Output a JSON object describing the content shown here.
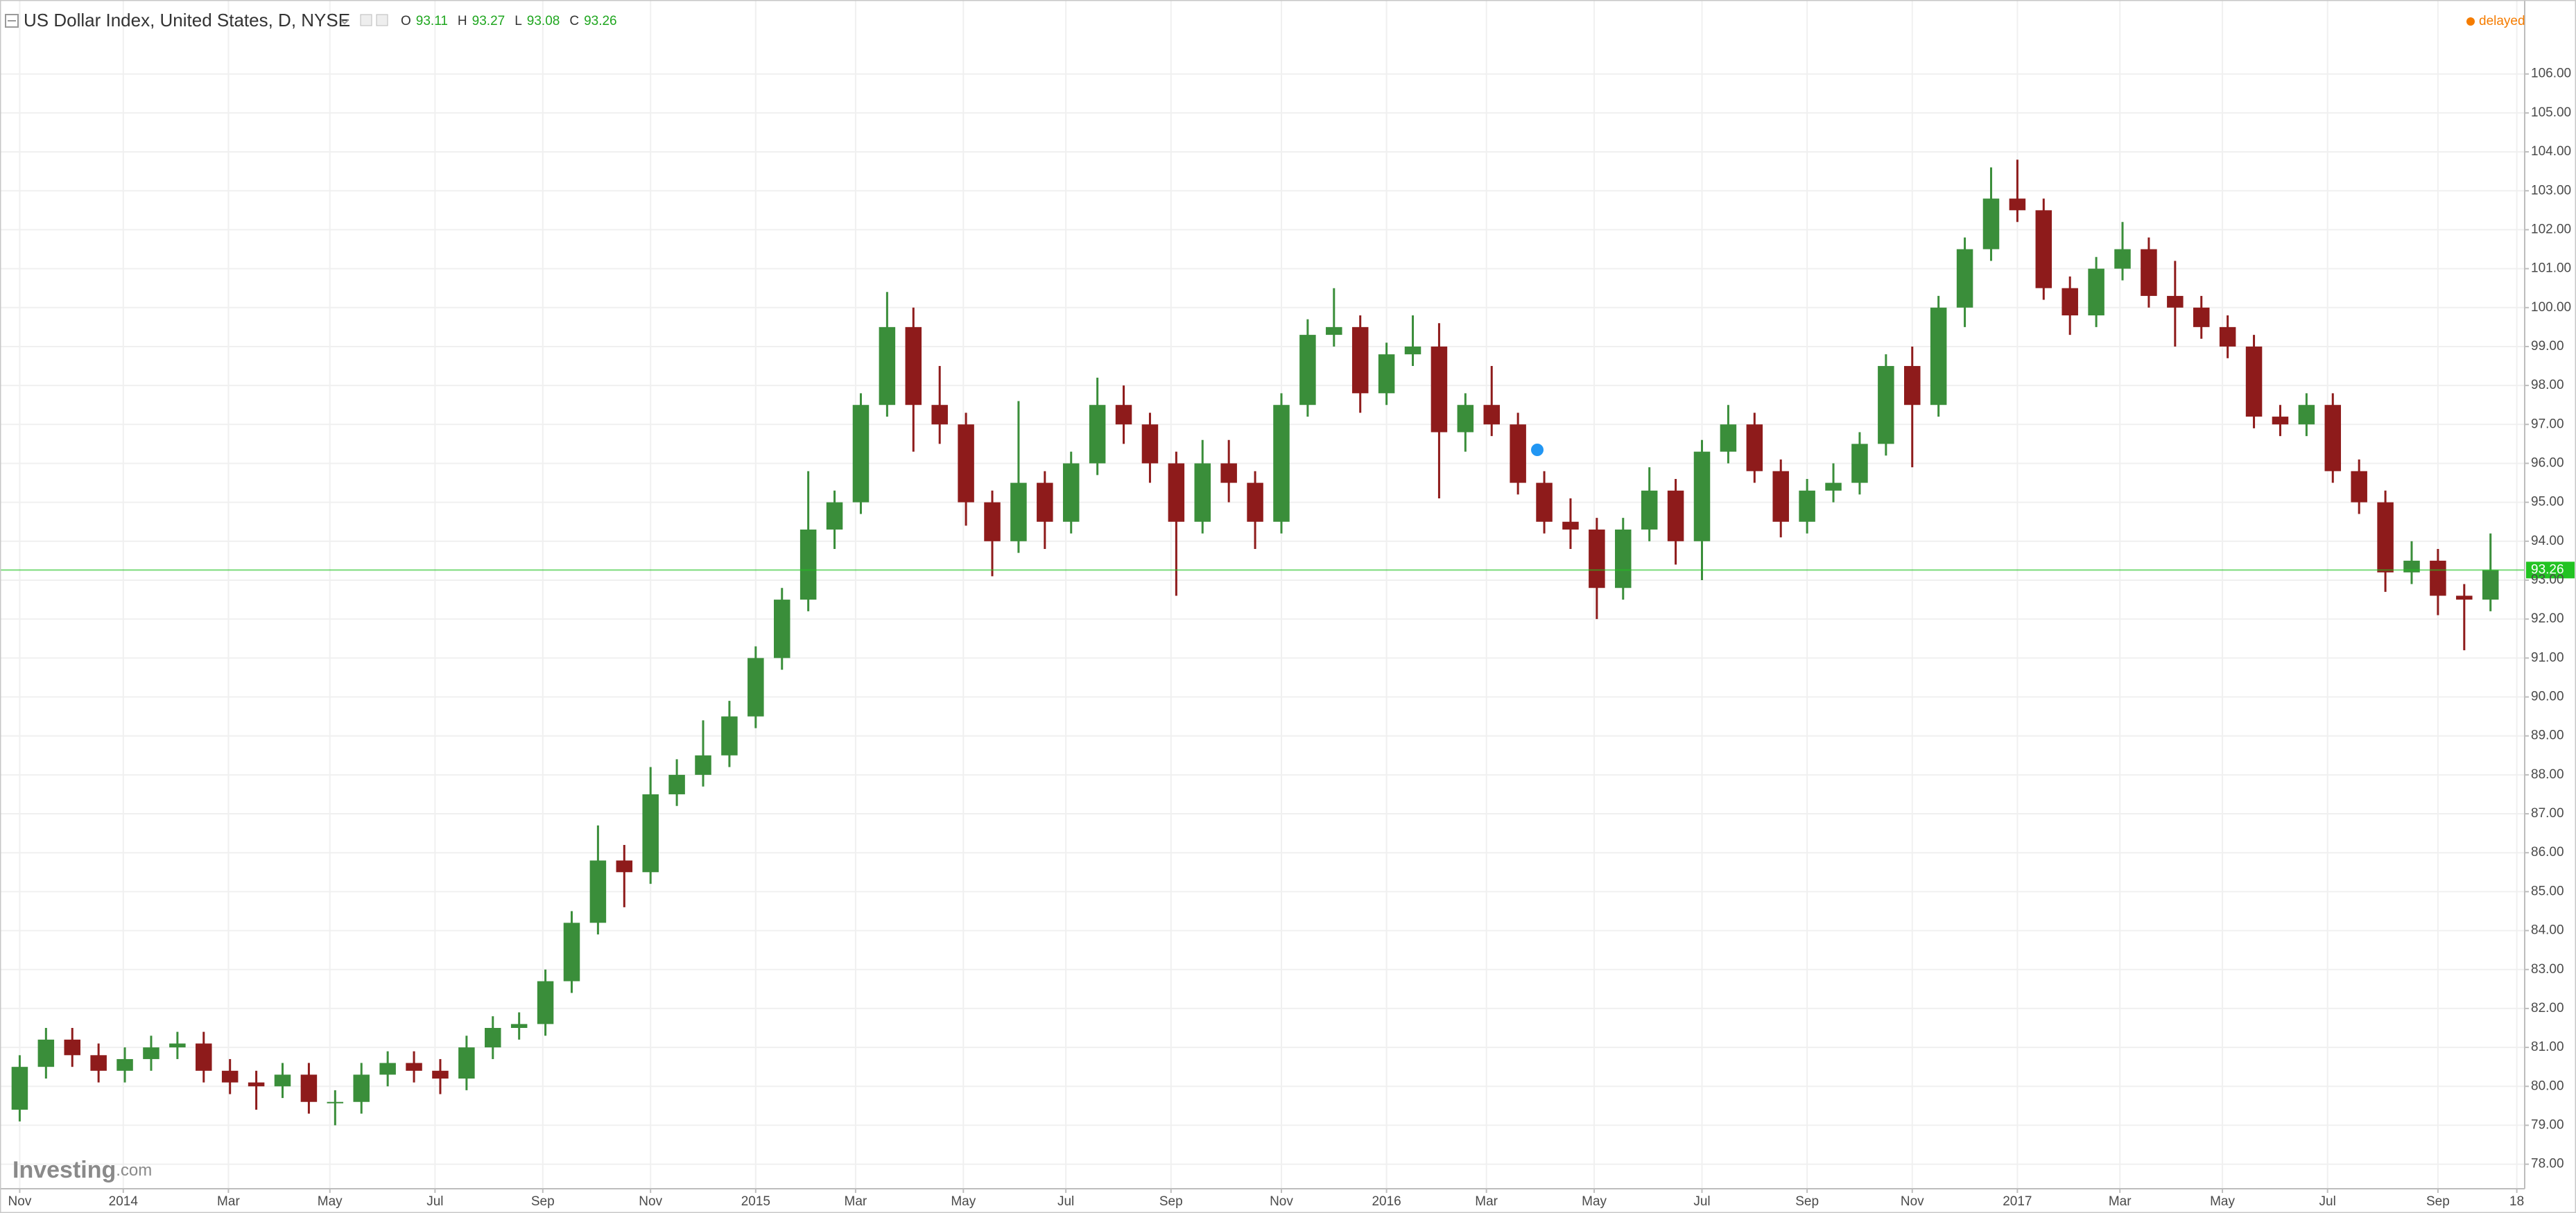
{
  "chart_data": {
    "type": "candlestick",
    "title": "US Dollar Index, United States, D, NYSE",
    "ohlc_legend": [
      {
        "label": "O",
        "value": 93.11
      },
      {
        "label": "H",
        "value": 93.27
      },
      {
        "label": "L",
        "value": 93.08
      },
      {
        "label": "C",
        "value": 93.26
      }
    ],
    "status": "delayed",
    "watermark": "Investing",
    "watermark_suffix": ".com",
    "up_color": "#3a8e3a",
    "down_color": "#8e1b1b",
    "last_price": 93.26,
    "last_price_color": "#22c322",
    "grid": true,
    "x": [
      0,
      1,
      2,
      3,
      4,
      5,
      6,
      7,
      8,
      9,
      10,
      11,
      12,
      13,
      14,
      15,
      16,
      17,
      18,
      19,
      20,
      21,
      22,
      23,
      24,
      25,
      26,
      27,
      28,
      29,
      30,
      31,
      32,
      33,
      34,
      35,
      36,
      37,
      38,
      39,
      40,
      41,
      42,
      43,
      44,
      45,
      46,
      47,
      48,
      49,
      50,
      51,
      52,
      53,
      54,
      55,
      56,
      57,
      58,
      59,
      60,
      61,
      62,
      63,
      64,
      65,
      66,
      67,
      68,
      69,
      70,
      71,
      72,
      73,
      74,
      75,
      76,
      77,
      78,
      79,
      80,
      81,
      82,
      83,
      84,
      85,
      86,
      87,
      88,
      89,
      90,
      91,
      92,
      93,
      94
    ],
    "open": [
      79.4,
      80.5,
      81.2,
      80.8,
      80.4,
      80.7,
      81.0,
      81.1,
      80.4,
      80.1,
      80.0,
      80.3,
      79.6,
      79.6,
      80.3,
      80.6,
      80.4,
      80.2,
      81.0,
      81.5,
      81.6,
      82.7,
      84.2,
      85.8,
      85.5,
      87.5,
      88.0,
      88.5,
      89.5,
      91.0,
      92.5,
      94.3,
      95.0,
      97.5,
      99.5,
      97.5,
      97.0,
      95.0,
      94.0,
      95.5,
      94.5,
      96.0,
      97.5,
      97.0,
      96.0,
      94.5,
      96.0,
      95.5,
      94.5,
      97.5,
      99.3,
      99.5,
      97.8,
      98.8,
      99.0,
      96.8,
      97.5,
      97.0,
      95.5,
      94.5,
      94.3,
      92.8,
      94.3,
      95.3,
      94.0,
      96.3,
      97.0,
      95.8,
      94.5,
      95.3,
      95.5,
      96.5,
      98.5,
      97.5,
      100.0,
      101.5,
      102.8,
      102.5,
      100.5,
      99.8,
      101.0,
      101.5,
      100.3,
      100.0,
      99.5,
      99.0,
      97.2,
      97.0,
      97.5,
      95.8,
      95.0,
      93.2,
      93.5,
      92.6,
      92.5
    ],
    "high": [
      80.8,
      81.5,
      81.5,
      81.1,
      81.0,
      81.3,
      81.4,
      81.4,
      80.7,
      80.4,
      80.6,
      80.6,
      79.9,
      80.6,
      80.9,
      80.9,
      80.7,
      81.3,
      81.8,
      81.9,
      83.0,
      84.5,
      86.7,
      86.2,
      88.2,
      88.4,
      89.4,
      89.9,
      91.3,
      92.8,
      95.8,
      95.3,
      97.8,
      100.4,
      100.0,
      98.5,
      97.3,
      95.3,
      97.6,
      95.8,
      96.3,
      98.2,
      98.0,
      97.3,
      96.3,
      96.6,
      96.6,
      95.8,
      97.8,
      99.7,
      100.5,
      99.8,
      99.1,
      99.8,
      99.6,
      97.8,
      98.5,
      97.3,
      95.8,
      95.1,
      94.6,
      94.6,
      95.9,
      95.6,
      96.6,
      97.5,
      97.3,
      96.1,
      95.6,
      96.0,
      96.8,
      98.8,
      99.0,
      100.3,
      101.8,
      103.6,
      103.8,
      102.8,
      100.8,
      101.3,
      102.2,
      101.8,
      101.2,
      100.3,
      99.8,
      99.3,
      97.5,
      97.8,
      97.8,
      96.1,
      95.3,
      94.0,
      93.8,
      92.9,
      94.2
    ],
    "low": [
      79.1,
      80.2,
      80.5,
      80.1,
      80.1,
      80.4,
      80.7,
      80.1,
      79.8,
      79.4,
      79.7,
      79.3,
      79.0,
      79.3,
      80.0,
      80.1,
      79.8,
      79.9,
      80.7,
      81.2,
      81.3,
      82.4,
      83.9,
      84.6,
      85.2,
      87.2,
      87.7,
      88.2,
      89.2,
      90.7,
      92.2,
      93.8,
      94.7,
      97.2,
      96.3,
      96.5,
      94.4,
      93.1,
      93.7,
      93.8,
      94.2,
      95.7,
      96.5,
      95.5,
      92.6,
      94.2,
      95.0,
      93.8,
      94.2,
      97.2,
      99.0,
      97.3,
      97.5,
      98.5,
      95.1,
      96.3,
      96.7,
      95.2,
      94.2,
      93.8,
      92.0,
      92.5,
      94.0,
      93.4,
      93.0,
      96.0,
      95.5,
      94.1,
      94.2,
      95.0,
      95.2,
      96.2,
      95.9,
      97.2,
      99.5,
      101.2,
      102.2,
      100.2,
      99.3,
      99.5,
      100.7,
      100.0,
      99.0,
      99.2,
      98.7,
      96.9,
      96.7,
      96.7,
      95.5,
      94.7,
      92.7,
      92.9,
      92.1,
      91.2,
      92.2
    ],
    "close": [
      80.5,
      81.2,
      80.8,
      80.4,
      80.7,
      81.0,
      81.1,
      80.4,
      80.1,
      80.0,
      80.3,
      79.6,
      79.6,
      80.3,
      80.6,
      80.4,
      80.2,
      81.0,
      81.5,
      81.6,
      82.7,
      84.2,
      85.8,
      85.5,
      87.5,
      88.0,
      88.5,
      89.5,
      91.0,
      92.5,
      94.3,
      95.0,
      97.5,
      99.5,
      97.5,
      97.0,
      95.0,
      94.0,
      95.5,
      94.5,
      96.0,
      97.5,
      97.0,
      96.0,
      94.5,
      96.0,
      95.5,
      94.5,
      97.5,
      99.3,
      99.5,
      97.8,
      98.8,
      99.0,
      96.8,
      97.5,
      97.0,
      95.5,
      94.5,
      94.3,
      92.8,
      94.3,
      95.3,
      94.0,
      96.3,
      97.0,
      95.8,
      94.5,
      95.3,
      95.5,
      96.5,
      98.5,
      97.5,
      100.0,
      101.5,
      102.8,
      102.5,
      100.5,
      99.8,
      101.0,
      101.5,
      100.3,
      100.0,
      99.5,
      99.0,
      97.2,
      97.0,
      97.5,
      95.8,
      95.0,
      93.2,
      93.5,
      92.6,
      92.5,
      93.26
    ],
    "xlim": [
      -0.75,
      95.3
    ],
    "xticks": [
      {
        "value": 0,
        "label": "Nov"
      },
      {
        "value": 3.94,
        "label": "2014"
      },
      {
        "value": 7.94,
        "label": "Mar"
      },
      {
        "value": 11.8,
        "label": "May"
      },
      {
        "value": 15.8,
        "label": "Jul"
      },
      {
        "value": 19.9,
        "label": "Sep"
      },
      {
        "value": 24,
        "label": "Nov"
      },
      {
        "value": 28,
        "label": "2015"
      },
      {
        "value": 31.8,
        "label": "Mar"
      },
      {
        "value": 35.9,
        "label": "May"
      },
      {
        "value": 39.8,
        "label": "Jul"
      },
      {
        "value": 43.8,
        "label": "Sep"
      },
      {
        "value": 48,
        "label": "Nov"
      },
      {
        "value": 52,
        "label": "2016"
      },
      {
        "value": 55.8,
        "label": "Mar"
      },
      {
        "value": 59.9,
        "label": "May"
      },
      {
        "value": 64,
        "label": "Jul"
      },
      {
        "value": 68,
        "label": "Sep"
      },
      {
        "value": 72,
        "label": "Nov"
      },
      {
        "value": 76,
        "label": "2017"
      },
      {
        "value": 79.9,
        "label": "Mar"
      },
      {
        "value": 83.8,
        "label": "May"
      },
      {
        "value": 87.8,
        "label": "Jul"
      },
      {
        "value": 92,
        "label": "Sep"
      },
      {
        "value": 95,
        "label": "18"
      }
    ],
    "ylim": [
      77.37,
      107.9
    ],
    "yticks": [
      {
        "value": 78,
        "label": "78.00"
      },
      {
        "value": 79,
        "label": "79.00"
      },
      {
        "value": 80,
        "label": "80.00"
      },
      {
        "value": 81,
        "label": "81.00"
      },
      {
        "value": 82,
        "label": "82.00"
      },
      {
        "value": 83,
        "label": "83.00"
      },
      {
        "value": 84,
        "label": "84.00"
      },
      {
        "value": 85,
        "label": "85.00"
      },
      {
        "value": 86,
        "label": "86.00"
      },
      {
        "value": 87,
        "label": "87.00"
      },
      {
        "value": 88,
        "label": "88.00"
      },
      {
        "value": 89,
        "label": "89.00"
      },
      {
        "value": 90,
        "label": "90.00"
      },
      {
        "value": 91,
        "label": "91.00"
      },
      {
        "value": 92,
        "label": "92.00"
      },
      {
        "value": 93,
        "label": "93.00"
      },
      {
        "value": 94,
        "label": "94.00"
      },
      {
        "value": 95,
        "label": "95.00"
      },
      {
        "value": 96,
        "label": "96.00"
      },
      {
        "value": 97,
        "label": "97.00"
      },
      {
        "value": 98,
        "label": "98.00"
      },
      {
        "value": 99,
        "label": "99.00"
      },
      {
        "value": 100,
        "label": "100.00"
      },
      {
        "value": 101,
        "label": "101.00"
      },
      {
        "value": 102,
        "label": "102.00"
      },
      {
        "value": 103,
        "label": "103.00"
      },
      {
        "value": 104,
        "label": "104.00"
      },
      {
        "value": 105,
        "label": "105.00"
      },
      {
        "value": 106,
        "label": "106.00"
      }
    ]
  }
}
